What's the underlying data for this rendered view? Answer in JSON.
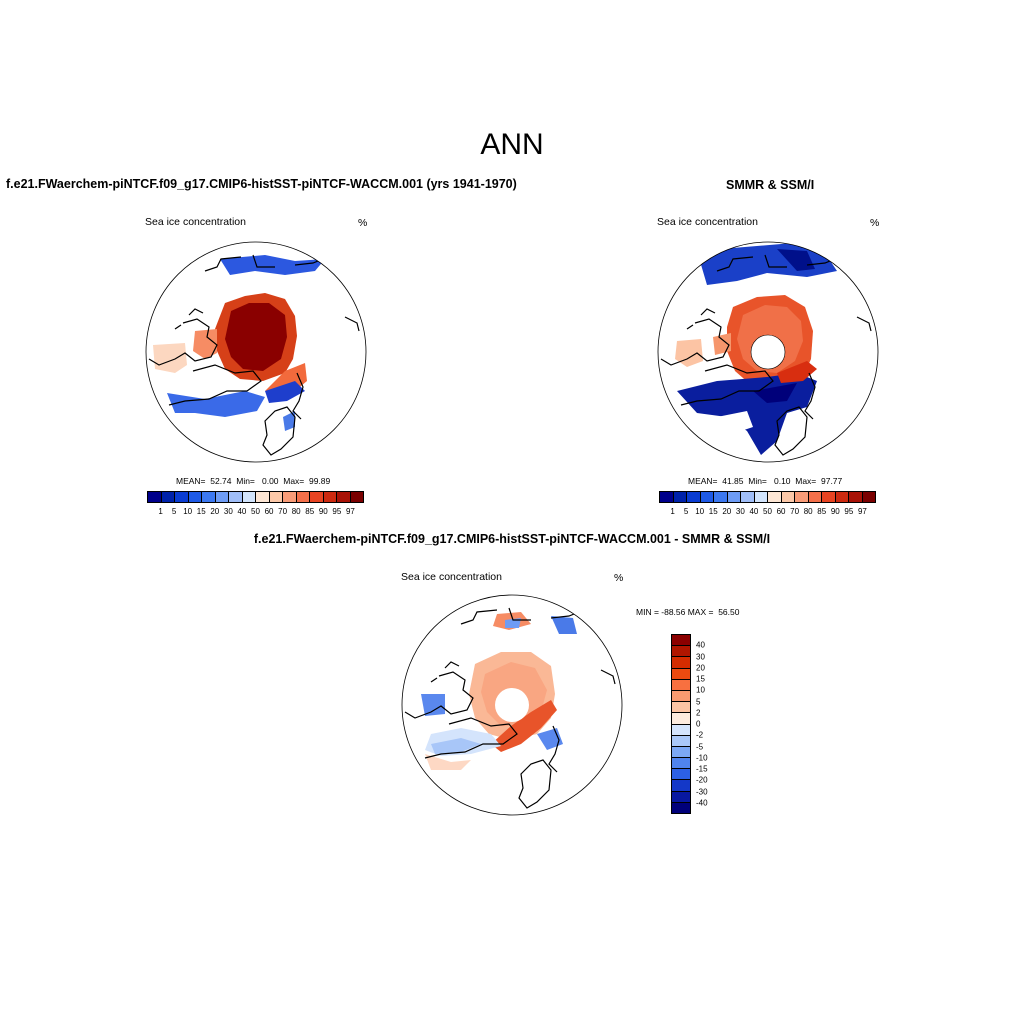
{
  "main_title": "ANN",
  "panels": [
    {
      "title": "f.e21.FWaerchem-piNTCF.f09_g17.CMIP6-histSST-piNTCF-WACCM.001 (yrs 1941-1970)",
      "subtitle_left": "Sea ice concentration",
      "subtitle_right": "%",
      "stats": "MEAN=  52.74  Min=   0.00  Max=  99.89"
    },
    {
      "title": "SMMR & SSM/I",
      "subtitle_left": "Sea ice concentration",
      "subtitle_right": "%",
      "stats": "MEAN=  41.85  Min=   0.10  Max=  97.77"
    },
    {
      "title": "f.e21.FWaerchem-piNTCF.f09_g17.CMIP6-histSST-piNTCF-WACCM.001 - SMMR & SSM/I",
      "subtitle_left": "Sea ice concentration",
      "subtitle_right": "%",
      "stats": "MIN = -88.56 MAX =  56.50"
    }
  ],
  "colorbar_levels": [
    "1",
    "5",
    "10",
    "15",
    "20",
    "30",
    "40",
    "50",
    "60",
    "70",
    "80",
    "85",
    "90",
    "95",
    "97"
  ],
  "colorbar_colors": [
    "#00008b",
    "#0022aa",
    "#0a3cd2",
    "#1e5ae6",
    "#3c78f0",
    "#6e9cf5",
    "#a0bef8",
    "#d2e4fc",
    "#fde6d4",
    "#fcc8a8",
    "#f99c78",
    "#f4704a",
    "#e84422",
    "#cd2a10",
    "#a81206",
    "#7a0000"
  ],
  "diff_levels": [
    "40",
    "30",
    "20",
    "15",
    "10",
    "5",
    "2",
    "0",
    "-2",
    "-5",
    "-10",
    "-15",
    "-20",
    "-30",
    "-40"
  ],
  "diff_colors": [
    "#8b0000",
    "#b01600",
    "#d42c00",
    "#ec4a10",
    "#f87040",
    "#fa9a70",
    "#fcc4a4",
    "#fdebde",
    "#d4e4fc",
    "#aac8f8",
    "#7ca8f4",
    "#5084ee",
    "#2c60e4",
    "#1438c8",
    "#0818a0",
    "#00007a"
  ]
}
